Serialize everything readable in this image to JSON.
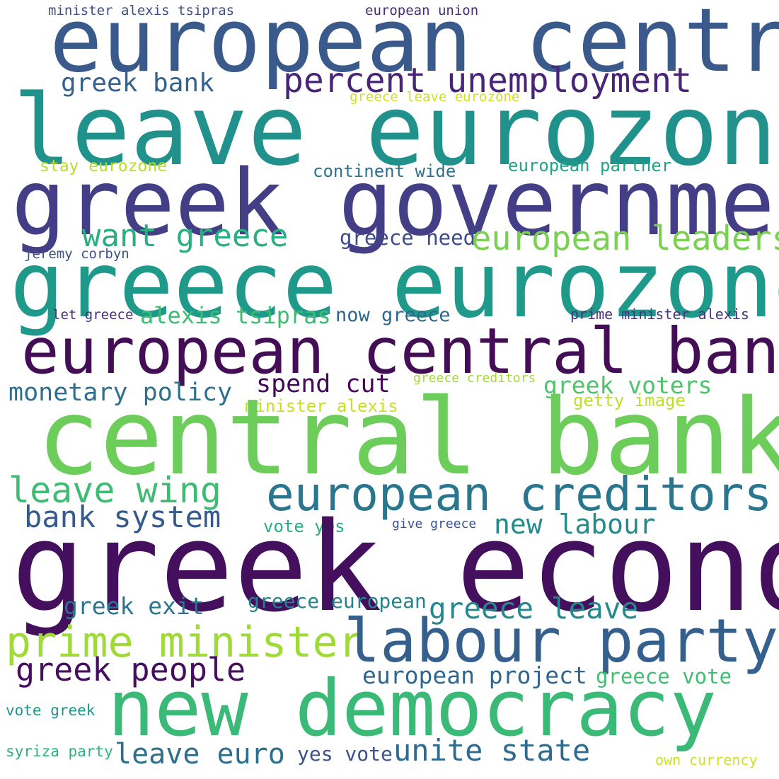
{
  "words": [
    {
      "text": "minister alexis tsipras",
      "color": "#3e4c8a"
    },
    {
      "text": "european union",
      "color": "#472c7a"
    },
    {
      "text": "european central",
      "color": "#3b5a8c"
    },
    {
      "text": "greek bank",
      "color": "#34618d"
    },
    {
      "text": "percent unemployment",
      "color": "#482576"
    },
    {
      "text": "greece leave eurozone",
      "color": "#d2e21b"
    },
    {
      "text": "leave eurozone",
      "color": "#21918c"
    },
    {
      "text": "stay eurozone",
      "color": "#b5de2b"
    },
    {
      "text": "continent wide",
      "color": "#2c728e"
    },
    {
      "text": "european partner",
      "color": "#20a386"
    },
    {
      "text": "greek government",
      "color": "#433e85"
    },
    {
      "text": "want greece",
      "color": "#29af7f"
    },
    {
      "text": "greece need",
      "color": "#3e4a89"
    },
    {
      "text": "european leaders",
      "color": "#7ad151"
    },
    {
      "text": "jeremy corbyn",
      "color": "#3b528b"
    },
    {
      "text": "greece eurozone",
      "color": "#1f9a8a"
    },
    {
      "text": "let greece",
      "color": "#472d7b"
    },
    {
      "text": "alexis tsipras",
      "color": "#3fbc73"
    },
    {
      "text": "now greece",
      "color": "#31688e"
    },
    {
      "text": "prime minister alexis",
      "color": "#46337e"
    },
    {
      "text": "european central bank",
      "color": "#440e57"
    },
    {
      "text": "monetary policy",
      "color": "#2e6e8e"
    },
    {
      "text": "spend cut",
      "color": "#45075a"
    },
    {
      "text": "greece creditors",
      "color": "#a5db36"
    },
    {
      "text": "greek voters",
      "color": "#4ec36b"
    },
    {
      "text": "minister alexis",
      "color": "#c8e020"
    },
    {
      "text": "getty image",
      "color": "#bddf26"
    },
    {
      "text": "central bank",
      "color": "#6ccd5a"
    },
    {
      "text": "leave wing",
      "color": "#3fbc73"
    },
    {
      "text": "european creditors",
      "color": "#2a768e"
    },
    {
      "text": "bank system",
      "color": "#375a8c"
    },
    {
      "text": "vote yes",
      "color": "#27ad81"
    },
    {
      "text": "give greece",
      "color": "#3b528b"
    },
    {
      "text": "new labour",
      "color": "#228c8d"
    },
    {
      "text": "greek economy",
      "color": "#440f5d"
    },
    {
      "text": "greek exit",
      "color": "#2c738e"
    },
    {
      "text": "greece european",
      "color": "#26828e"
    },
    {
      "text": "greece leave",
      "color": "#23898e"
    },
    {
      "text": "prime minister",
      "color": "#a0da39"
    },
    {
      "text": "labour party",
      "color": "#355f8d"
    },
    {
      "text": "greek people",
      "color": "#470d60"
    },
    {
      "text": "european project",
      "color": "#31668e"
    },
    {
      "text": "greece vote",
      "color": "#42be71"
    },
    {
      "text": "new democracy",
      "color": "#3aba76"
    },
    {
      "text": "vote greek",
      "color": "#1f958b"
    },
    {
      "text": "syriza party",
      "color": "#2db27d"
    },
    {
      "text": "leave euro",
      "color": "#2e6f8e"
    },
    {
      "text": "yes vote",
      "color": "#3b528b"
    },
    {
      "text": "unite state",
      "color": "#2f6b8e"
    },
    {
      "text": "own currency",
      "color": "#cde11d"
    }
  ]
}
